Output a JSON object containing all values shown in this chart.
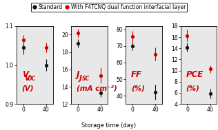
{
  "panels": [
    {
      "ylabel_line1": "V",
      "ylabel_sub": "OC",
      "ylabel_line2": "(V)",
      "ylim": [
        0.9,
        1.1
      ],
      "yticks": [
        0.9,
        1.0,
        1.1
      ],
      "ytick_labels": [
        "0.9",
        "1.0",
        "1.1"
      ],
      "black_x": [
        0,
        40
      ],
      "black_y": [
        1.045,
        1.0
      ],
      "black_yerr": [
        0.018,
        0.015
      ],
      "red_x": [
        0,
        40
      ],
      "red_y": [
        1.065,
        1.045
      ],
      "red_yerr": [
        0.012,
        0.012
      ]
    },
    {
      "ylabel_line1": "J",
      "ylabel_sub": "SC",
      "ylabel_line2": "(mA cm⁻²)",
      "ylim": [
        12,
        21
      ],
      "yticks": [
        12,
        14,
        16,
        18,
        20
      ],
      "ytick_labels": [
        "12",
        "14",
        "16",
        "18",
        "20"
      ],
      "black_x": [
        0,
        40
      ],
      "black_y": [
        19.0,
        13.3
      ],
      "black_yerr": [
        0.5,
        0.5
      ],
      "red_x": [
        0,
        40
      ],
      "red_y": [
        20.2,
        15.3
      ],
      "red_yerr": [
        0.5,
        0.9
      ]
    },
    {
      "ylabel_line1": "FF",
      "ylabel_sub": "",
      "ylabel_line2": "(%)",
      "ylim": [
        35,
        82
      ],
      "yticks": [
        40,
        50,
        60,
        70,
        80
      ],
      "ytick_labels": [
        "40",
        "50",
        "60",
        "70",
        "80"
      ],
      "black_x": [
        0,
        40
      ],
      "black_y": [
        70.0,
        42.0
      ],
      "black_yerr": [
        2.5,
        4.5
      ],
      "red_x": [
        0,
        40
      ],
      "red_y": [
        75.5,
        65.0
      ],
      "red_yerr": [
        3.5,
        4.0
      ]
    },
    {
      "ylabel_line1": "PCE",
      "ylabel_sub": "",
      "ylabel_line2": "(%)",
      "ylim": [
        4,
        18
      ],
      "yticks": [
        4,
        6,
        8,
        10,
        12,
        14,
        16,
        18
      ],
      "ytick_labels": [
        "4",
        "6",
        "8",
        "10",
        "12",
        "14",
        "16",
        "18"
      ],
      "black_x": [
        0,
        40
      ],
      "black_y": [
        14.2,
        5.9
      ],
      "black_yerr": [
        0.8,
        0.9
      ],
      "red_x": [
        0,
        40
      ],
      "red_y": [
        16.3,
        10.3
      ],
      "red_yerr": [
        1.0,
        0.7
      ]
    }
  ],
  "xticks": [
    0,
    40
  ],
  "xlabel": "Storage time (day)",
  "black_color": "#111111",
  "red_color": "#cc0000",
  "legend_labels": [
    "Standard",
    "With F4TCNQ dual function interfacial layer"
  ],
  "background_color": "#ffffff",
  "panel_bg": "#e8e8e8",
  "label_fontsize": 6.0,
  "ylabel_fontsize": 7.5,
  "tick_fontsize": 5.5,
  "legend_fontsize": 5.5,
  "annot_color": "#cc0000"
}
